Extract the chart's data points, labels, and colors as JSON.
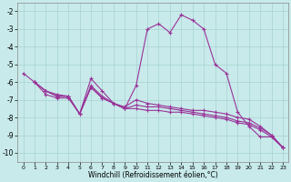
{
  "xlabel": "Windchill (Refroidissement éolien,°C)",
  "background_color": "#c8eaea",
  "line_color": "#993399",
  "grid_color": "#a0cccc",
  "xlim": [
    -0.5,
    23.5
  ],
  "ylim": [
    -10.5,
    -1.5
  ],
  "yticks": [
    -10,
    -9,
    -8,
    -7,
    -6,
    -5,
    -4,
    -3,
    -2
  ],
  "xticks": [
    0,
    1,
    2,
    3,
    4,
    5,
    6,
    7,
    8,
    9,
    10,
    11,
    12,
    13,
    14,
    15,
    16,
    17,
    18,
    19,
    20,
    21,
    22,
    23
  ],
  "lines": [
    [
      -5.5,
      -6.0,
      -6.5,
      -6.7,
      -6.8,
      -7.8,
      -5.8,
      -6.5,
      -7.2,
      -7.5,
      -6.2,
      -3.0,
      -2.7,
      -3.2,
      -2.2,
      -2.5,
      -3.0,
      -5.0,
      -5.5,
      -7.7,
      -8.5,
      -9.1,
      -9.1,
      -9.7
    ],
    [
      null,
      -6.0,
      -6.7,
      -6.9,
      -6.9,
      -7.8,
      -6.2,
      -6.8,
      -7.2,
      -7.4,
      -7.0,
      -7.2,
      -7.3,
      -7.4,
      -7.5,
      -7.6,
      -7.6,
      -7.7,
      -7.8,
      -8.0,
      -8.1,
      -8.5,
      -9.0,
      -9.7
    ],
    [
      null,
      -6.0,
      -6.5,
      -6.8,
      -6.8,
      -7.8,
      -6.3,
      -6.9,
      -7.2,
      -7.5,
      -7.3,
      -7.4,
      -7.4,
      -7.5,
      -7.6,
      -7.7,
      -7.8,
      -7.9,
      -8.0,
      -8.2,
      -8.3,
      -8.6,
      -9.0,
      -9.7
    ],
    [
      null,
      -6.0,
      -6.5,
      -6.8,
      -6.8,
      -7.8,
      -6.3,
      -6.9,
      -7.2,
      -7.5,
      -7.5,
      -7.6,
      -7.6,
      -7.7,
      -7.7,
      -7.8,
      -7.9,
      -8.0,
      -8.1,
      -8.3,
      -8.4,
      -8.7,
      -9.1,
      -9.7
    ]
  ],
  "xtick_fontsize": 4.5,
  "ytick_fontsize": 5.5,
  "xlabel_fontsize": 5.5
}
